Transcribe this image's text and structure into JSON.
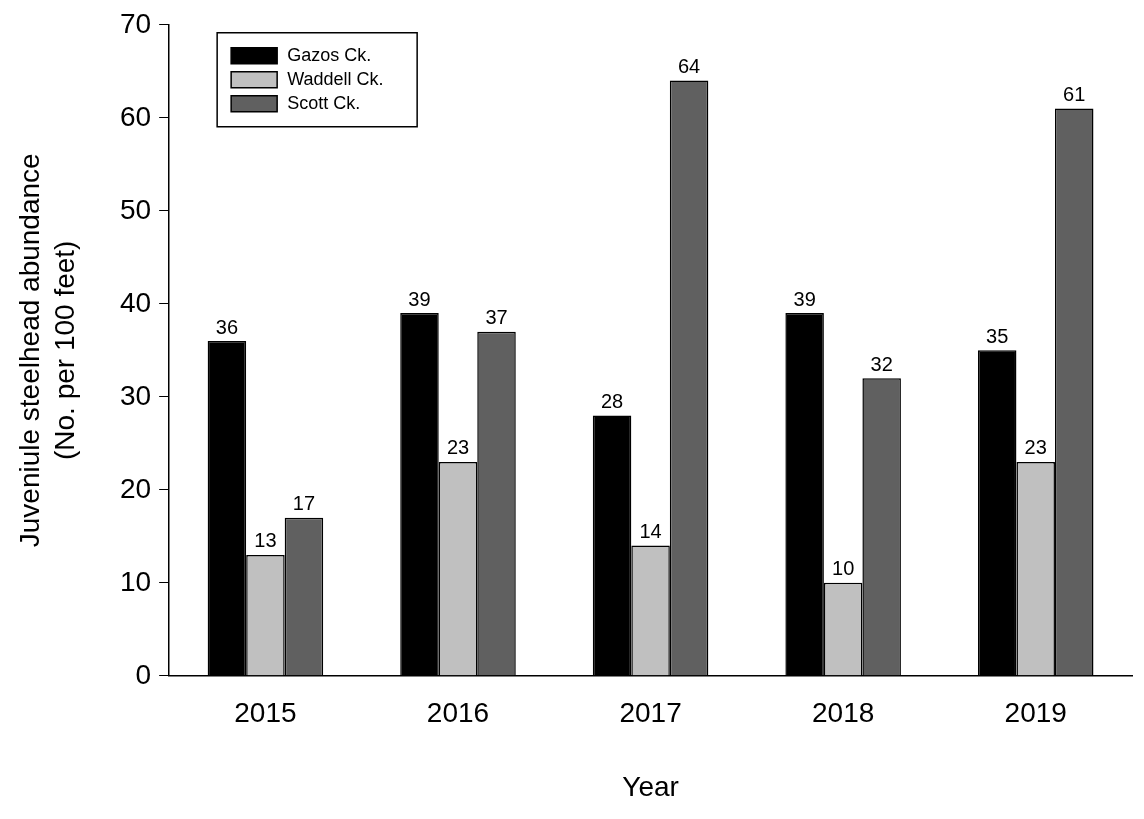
{
  "chart_data": {
    "type": "bar",
    "xlabel": "Year",
    "ylabel": "Juveniule steelhead abundance\n(No. per 100 feet)",
    "categories": [
      "2015",
      "2016",
      "2017",
      "2018",
      "2019"
    ],
    "series": [
      {
        "name": "Gazos Ck.",
        "color": "#000000",
        "values": [
          36,
          39,
          28,
          39,
          35
        ]
      },
      {
        "name": "Waddell Ck.",
        "color": "#c0c0c0",
        "values": [
          13,
          23,
          14,
          10,
          23
        ]
      },
      {
        "name": "Scott Ck.",
        "color": "#606060",
        "values": [
          17,
          37,
          64,
          32,
          61
        ]
      }
    ],
    "ylim": [
      0,
      70
    ],
    "yticks": [
      0,
      10,
      20,
      30,
      40,
      50,
      60,
      70
    ],
    "grid": false,
    "legend": "top left",
    "data_labels": true
  }
}
